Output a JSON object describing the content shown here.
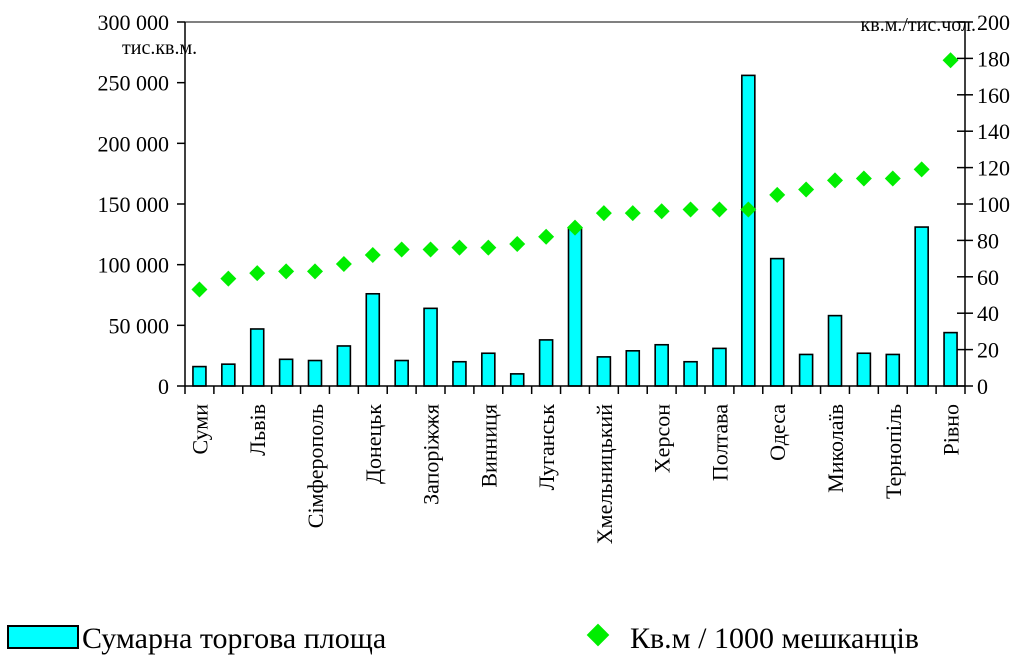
{
  "chart_data": {
    "type": "bar",
    "title": "",
    "categories": [
      "Суми",
      "",
      "Львів",
      "",
      "Сімферополь",
      "",
      "Донецьк",
      "",
      "Запоріжжя",
      "",
      "Винниця",
      "",
      "Луганськ",
      "",
      "Хмельницький",
      "",
      "Херсон",
      "",
      "Полтава",
      "",
      "Одеса",
      "",
      "Миколаїв",
      "",
      "Тернопіль",
      "",
      "Рівно"
    ],
    "series": [
      {
        "name": "Сумарна торгова площа",
        "type": "bar",
        "axis": "left",
        "color": "#00FFFF",
        "values": [
          16000,
          18000,
          47000,
          22000,
          21000,
          33000,
          76000,
          21000,
          64000,
          20000,
          27000,
          10000,
          38000,
          130000,
          24000,
          29000,
          34000,
          20000,
          31000,
          256000,
          105000,
          26000,
          58000,
          27000,
          26000,
          131000,
          44000
        ]
      },
      {
        "name": "Кв.м / 1000 мешканців",
        "type": "scatter",
        "axis": "right",
        "color": "#00EE00",
        "values": [
          53,
          59,
          62,
          63,
          63,
          67,
          72,
          75,
          75,
          76,
          76,
          78,
          82,
          87,
          95,
          95,
          96,
          97,
          97,
          97,
          105,
          108,
          113,
          114,
          114,
          119,
          179
        ]
      }
    ],
    "y_left": {
      "unit_label": "тис.кв.м.",
      "ylim": [
        0,
        300000
      ],
      "ticks": [
        0,
        50000,
        100000,
        150000,
        200000,
        250000,
        300000
      ],
      "tick_labels": [
        "0",
        "50 000",
        "100 000",
        "150 000",
        "200 000",
        "250 000",
        "300 000"
      ]
    },
    "y_right": {
      "unit_label": "кв.м./тис.чол.",
      "ylim": [
        0,
        200
      ],
      "ticks": [
        0,
        20,
        40,
        60,
        80,
        100,
        120,
        140,
        160,
        180,
        200
      ],
      "tick_labels": [
        "0",
        "20",
        "40",
        "60",
        "80",
        "100",
        "120",
        "140",
        "160",
        "180",
        "200"
      ]
    },
    "grid": false,
    "legend": {
      "placement": "bottom",
      "entries": [
        "Сумарна торгова площа",
        "Кв.м / 1000 мешканців"
      ]
    }
  }
}
